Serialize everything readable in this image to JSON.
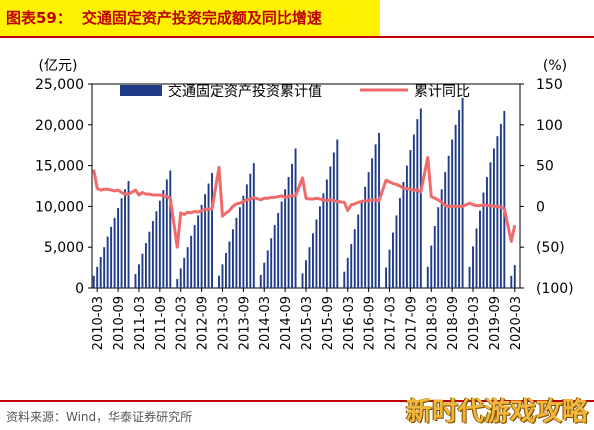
{
  "header": {
    "label": "图表59：",
    "title": "交通固定资产投资完成额及同比增速"
  },
  "footer": {
    "source": "资料来源：Wind，华泰证券研究所",
    "watermark": "新时代游戏攻略"
  },
  "colors": {
    "title_bg": "#fff200",
    "title_text": "#c00000",
    "rule": "#c00000",
    "bar": "#1f3c88",
    "line": "#f26b6b"
  },
  "chart_data": {
    "type": "bar",
    "title": "",
    "left_unit": "(亿元)",
    "right_unit": "(%)",
    "left_ticks": [
      "0",
      "5,000",
      "10,000",
      "15,000",
      "20,000",
      "25,000"
    ],
    "right_ticks": [
      "(100)",
      "(50)",
      "0",
      "50",
      "100",
      "150"
    ],
    "ylim_left": [
      0,
      25000
    ],
    "ylim_right": [
      -100,
      150
    ],
    "x_tick_labels": [
      "2010-03",
      "2010-09",
      "2011-03",
      "2011-09",
      "2012-03",
      "2012-09",
      "2013-03",
      "2013-09",
      "2014-03",
      "2014-09",
      "2015-03",
      "2015-09",
      "2016-03",
      "2016-09",
      "2017-03",
      "2017-09",
      "2018-03",
      "2018-09",
      "2019-03",
      "2019-09",
      "2020-03"
    ],
    "legend": {
      "position": "top",
      "bar_label": "交通固定资产投资累计值",
      "line_label": "累计同比"
    },
    "x_start": "2010-02",
    "series": [
      {
        "name": "交通固定资产投资累计值",
        "kind": "bar",
        "axis": "left",
        "values": [
          {
            "x": "2010-02",
            "y": 1500
          },
          {
            "x": "2010-03",
            "y": 2600
          },
          {
            "x": "2010-04",
            "y": 3800
          },
          {
            "x": "2010-05",
            "y": 5000
          },
          {
            "x": "2010-06",
            "y": 6300
          },
          {
            "x": "2010-07",
            "y": 7500
          },
          {
            "x": "2010-08",
            "y": 8600
          },
          {
            "x": "2010-09",
            "y": 9800
          },
          {
            "x": "2010-10",
            "y": 11000
          },
          {
            "x": "2010-11",
            "y": 12100
          },
          {
            "x": "2010-12",
            "y": 13100
          },
          {
            "x": "2011-02",
            "y": 1700
          },
          {
            "x": "2011-03",
            "y": 2900
          },
          {
            "x": "2011-04",
            "y": 4200
          },
          {
            "x": "2011-05",
            "y": 5500
          },
          {
            "x": "2011-06",
            "y": 6900
          },
          {
            "x": "2011-07",
            "y": 8200
          },
          {
            "x": "2011-08",
            "y": 9400
          },
          {
            "x": "2011-09",
            "y": 10700
          },
          {
            "x": "2011-10",
            "y": 12000
          },
          {
            "x": "2011-11",
            "y": 13300
          },
          {
            "x": "2011-12",
            "y": 14400
          },
          {
            "x": "2012-02",
            "y": 1100
          },
          {
            "x": "2012-03",
            "y": 2400
          },
          {
            "x": "2012-04",
            "y": 3700
          },
          {
            "x": "2012-05",
            "y": 5000
          },
          {
            "x": "2012-06",
            "y": 6400
          },
          {
            "x": "2012-07",
            "y": 7700
          },
          {
            "x": "2012-08",
            "y": 8900
          },
          {
            "x": "2012-09",
            "y": 10200
          },
          {
            "x": "2012-10",
            "y": 11500
          },
          {
            "x": "2012-11",
            "y": 12800
          },
          {
            "x": "2012-12",
            "y": 14100
          },
          {
            "x": "2013-02",
            "y": 1500
          },
          {
            "x": "2013-03",
            "y": 2900
          },
          {
            "x": "2013-04",
            "y": 4300
          },
          {
            "x": "2013-05",
            "y": 5700
          },
          {
            "x": "2013-06",
            "y": 7200
          },
          {
            "x": "2013-07",
            "y": 8600
          },
          {
            "x": "2013-08",
            "y": 9900
          },
          {
            "x": "2013-09",
            "y": 11300
          },
          {
            "x": "2013-10",
            "y": 12700
          },
          {
            "x": "2013-11",
            "y": 14000
          },
          {
            "x": "2013-12",
            "y": 15300
          },
          {
            "x": "2014-02",
            "y": 1600
          },
          {
            "x": "2014-03",
            "y": 3100
          },
          {
            "x": "2014-04",
            "y": 4600
          },
          {
            "x": "2014-05",
            "y": 6100
          },
          {
            "x": "2014-06",
            "y": 7700
          },
          {
            "x": "2014-07",
            "y": 9200
          },
          {
            "x": "2014-08",
            "y": 10600
          },
          {
            "x": "2014-09",
            "y": 12100
          },
          {
            "x": "2014-10",
            "y": 13600
          },
          {
            "x": "2014-11",
            "y": 15200
          },
          {
            "x": "2014-12",
            "y": 17100
          },
          {
            "x": "2015-02",
            "y": 1800
          },
          {
            "x": "2015-03",
            "y": 3400
          },
          {
            "x": "2015-04",
            "y": 5000
          },
          {
            "x": "2015-05",
            "y": 6700
          },
          {
            "x": "2015-06",
            "y": 8400
          },
          {
            "x": "2015-07",
            "y": 10000
          },
          {
            "x": "2015-08",
            "y": 11600
          },
          {
            "x": "2015-09",
            "y": 13300
          },
          {
            "x": "2015-10",
            "y": 14900
          },
          {
            "x": "2015-11",
            "y": 16600
          },
          {
            "x": "2015-12",
            "y": 18200
          },
          {
            "x": "2016-02",
            "y": 2000
          },
          {
            "x": "2016-03",
            "y": 3700
          },
          {
            "x": "2016-04",
            "y": 5400
          },
          {
            "x": "2016-05",
            "y": 7200
          },
          {
            "x": "2016-06",
            "y": 9000
          },
          {
            "x": "2016-07",
            "y": 10700
          },
          {
            "x": "2016-08",
            "y": 12400
          },
          {
            "x": "2016-09",
            "y": 14200
          },
          {
            "x": "2016-10",
            "y": 15900
          },
          {
            "x": "2016-11",
            "y": 17600
          },
          {
            "x": "2016-12",
            "y": 19000
          },
          {
            "x": "2017-02",
            "y": 2500
          },
          {
            "x": "2017-03",
            "y": 4700
          },
          {
            "x": "2017-04",
            "y": 6800
          },
          {
            "x": "2017-05",
            "y": 8900
          },
          {
            "x": "2017-06",
            "y": 11000
          },
          {
            "x": "2017-07",
            "y": 13000
          },
          {
            "x": "2017-08",
            "y": 15000
          },
          {
            "x": "2017-09",
            "y": 16900
          },
          {
            "x": "2017-10",
            "y": 18800
          },
          {
            "x": "2017-11",
            "y": 20700
          },
          {
            "x": "2017-12",
            "y": 22000
          },
          {
            "x": "2018-02",
            "y": 2600
          },
          {
            "x": "2018-03",
            "y": 5200
          },
          {
            "x": "2018-04",
            "y": 7600
          },
          {
            "x": "2018-05",
            "y": 9900
          },
          {
            "x": "2018-06",
            "y": 12100
          },
          {
            "x": "2018-07",
            "y": 14200
          },
          {
            "x": "2018-08",
            "y": 16200
          },
          {
            "x": "2018-09",
            "y": 18200
          },
          {
            "x": "2018-10",
            "y": 20000
          },
          {
            "x": "2018-11",
            "y": 21800
          },
          {
            "x": "2018-12",
            "y": 23300
          },
          {
            "x": "2019-02",
            "y": 2600
          },
          {
            "x": "2019-03",
            "y": 5100
          },
          {
            "x": "2019-04",
            "y": 7300
          },
          {
            "x": "2019-05",
            "y": 9500
          },
          {
            "x": "2019-06",
            "y": 11700
          },
          {
            "x": "2019-07",
            "y": 13600
          },
          {
            "x": "2019-08",
            "y": 15400
          },
          {
            "x": "2019-09",
            "y": 17100
          },
          {
            "x": "2019-10",
            "y": 18600
          },
          {
            "x": "2019-11",
            "y": 20100
          },
          {
            "x": "2019-12",
            "y": 21700
          },
          {
            "x": "2020-02",
            "y": 1500
          },
          {
            "x": "2020-03",
            "y": 2800
          }
        ]
      },
      {
        "name": "累计同比",
        "kind": "line",
        "axis": "right",
        "values": [
          {
            "x": "2010-02",
            "y": 45
          },
          {
            "x": "2010-03",
            "y": 22
          },
          {
            "x": "2010-04",
            "y": 20
          },
          {
            "x": "2010-05",
            "y": 21
          },
          {
            "x": "2010-06",
            "y": 21
          },
          {
            "x": "2010-07",
            "y": 20
          },
          {
            "x": "2010-08",
            "y": 19
          },
          {
            "x": "2010-09",
            "y": 20
          },
          {
            "x": "2010-10",
            "y": 17
          },
          {
            "x": "2010-11",
            "y": 15
          },
          {
            "x": "2010-12",
            "y": 15
          },
          {
            "x": "2011-02",
            "y": 20
          },
          {
            "x": "2011-03",
            "y": 14
          },
          {
            "x": "2011-04",
            "y": 17
          },
          {
            "x": "2011-05",
            "y": 15
          },
          {
            "x": "2011-06",
            "y": 15
          },
          {
            "x": "2011-07",
            "y": 14
          },
          {
            "x": "2011-08",
            "y": 14
          },
          {
            "x": "2011-09",
            "y": 14
          },
          {
            "x": "2011-10",
            "y": 13
          },
          {
            "x": "2011-11",
            "y": 12
          },
          {
            "x": "2011-12",
            "y": 10
          },
          {
            "x": "2012-02",
            "y": -50
          },
          {
            "x": "2012-03",
            "y": -8
          },
          {
            "x": "2012-04",
            "y": -10
          },
          {
            "x": "2012-05",
            "y": -7
          },
          {
            "x": "2012-06",
            "y": -8
          },
          {
            "x": "2012-07",
            "y": -6
          },
          {
            "x": "2012-08",
            "y": -7
          },
          {
            "x": "2012-09",
            "y": -5
          },
          {
            "x": "2012-10",
            "y": -4
          },
          {
            "x": "2012-11",
            "y": -3
          },
          {
            "x": "2012-12",
            "y": -3
          },
          {
            "x": "2013-02",
            "y": 48
          },
          {
            "x": "2013-03",
            "y": -12
          },
          {
            "x": "2013-04",
            "y": -8
          },
          {
            "x": "2013-05",
            "y": -5
          },
          {
            "x": "2013-06",
            "y": 0
          },
          {
            "x": "2013-07",
            "y": 3
          },
          {
            "x": "2013-08",
            "y": 4
          },
          {
            "x": "2013-09",
            "y": 6
          },
          {
            "x": "2013-10",
            "y": 8
          },
          {
            "x": "2013-11",
            "y": 9
          },
          {
            "x": "2013-12",
            "y": 11
          },
          {
            "x": "2014-02",
            "y": 8
          },
          {
            "x": "2014-03",
            "y": 10
          },
          {
            "x": "2014-04",
            "y": 10
          },
          {
            "x": "2014-05",
            "y": 11
          },
          {
            "x": "2014-06",
            "y": 11
          },
          {
            "x": "2014-07",
            "y": 12
          },
          {
            "x": "2014-08",
            "y": 13
          },
          {
            "x": "2014-09",
            "y": 11
          },
          {
            "x": "2014-10",
            "y": 12
          },
          {
            "x": "2014-11",
            "y": 13
          },
          {
            "x": "2014-12",
            "y": 13
          },
          {
            "x": "2015-02",
            "y": 35
          },
          {
            "x": "2015-03",
            "y": 10
          },
          {
            "x": "2015-04",
            "y": 9
          },
          {
            "x": "2015-05",
            "y": 9
          },
          {
            "x": "2015-06",
            "y": 10
          },
          {
            "x": "2015-07",
            "y": 9
          },
          {
            "x": "2015-08",
            "y": 8
          },
          {
            "x": "2015-09",
            "y": 7
          },
          {
            "x": "2015-10",
            "y": 8
          },
          {
            "x": "2015-11",
            "y": 7
          },
          {
            "x": "2015-12",
            "y": 6
          },
          {
            "x": "2016-02",
            "y": 5
          },
          {
            "x": "2016-03",
            "y": -5
          },
          {
            "x": "2016-04",
            "y": 2
          },
          {
            "x": "2016-05",
            "y": 3
          },
          {
            "x": "2016-06",
            "y": 5
          },
          {
            "x": "2016-07",
            "y": 6
          },
          {
            "x": "2016-08",
            "y": 7
          },
          {
            "x": "2016-09",
            "y": 7
          },
          {
            "x": "2016-10",
            "y": 8
          },
          {
            "x": "2016-11",
            "y": 8
          },
          {
            "x": "2016-12",
            "y": 7
          },
          {
            "x": "2017-02",
            "y": 32
          },
          {
            "x": "2017-03",
            "y": 30
          },
          {
            "x": "2017-04",
            "y": 28
          },
          {
            "x": "2017-05",
            "y": 27
          },
          {
            "x": "2017-06",
            "y": 25
          },
          {
            "x": "2017-07",
            "y": 22
          },
          {
            "x": "2017-08",
            "y": 22
          },
          {
            "x": "2017-09",
            "y": 21
          },
          {
            "x": "2017-10",
            "y": 20
          },
          {
            "x": "2017-11",
            "y": 20
          },
          {
            "x": "2017-12",
            "y": 18
          },
          {
            "x": "2018-02",
            "y": 60
          },
          {
            "x": "2018-03",
            "y": 12
          },
          {
            "x": "2018-04",
            "y": 10
          },
          {
            "x": "2018-05",
            "y": 8
          },
          {
            "x": "2018-06",
            "y": 5
          },
          {
            "x": "2018-07",
            "y": 1
          },
          {
            "x": "2018-08",
            "y": 0
          },
          {
            "x": "2018-09",
            "y": 0
          },
          {
            "x": "2018-10",
            "y": 0
          },
          {
            "x": "2018-11",
            "y": 0
          },
          {
            "x": "2018-12",
            "y": 0
          },
          {
            "x": "2019-02",
            "y": 4
          },
          {
            "x": "2019-03",
            "y": 2
          },
          {
            "x": "2019-04",
            "y": 1
          },
          {
            "x": "2019-05",
            "y": 1
          },
          {
            "x": "2019-06",
            "y": 2
          },
          {
            "x": "2019-07",
            "y": 1
          },
          {
            "x": "2019-08",
            "y": 1
          },
          {
            "x": "2019-09",
            "y": 0
          },
          {
            "x": "2019-10",
            "y": 0
          },
          {
            "x": "2019-11",
            "y": -1
          },
          {
            "x": "2019-12",
            "y": -3
          },
          {
            "x": "2020-02",
            "y": -43
          },
          {
            "x": "2020-03",
            "y": -23
          }
        ]
      }
    ]
  }
}
